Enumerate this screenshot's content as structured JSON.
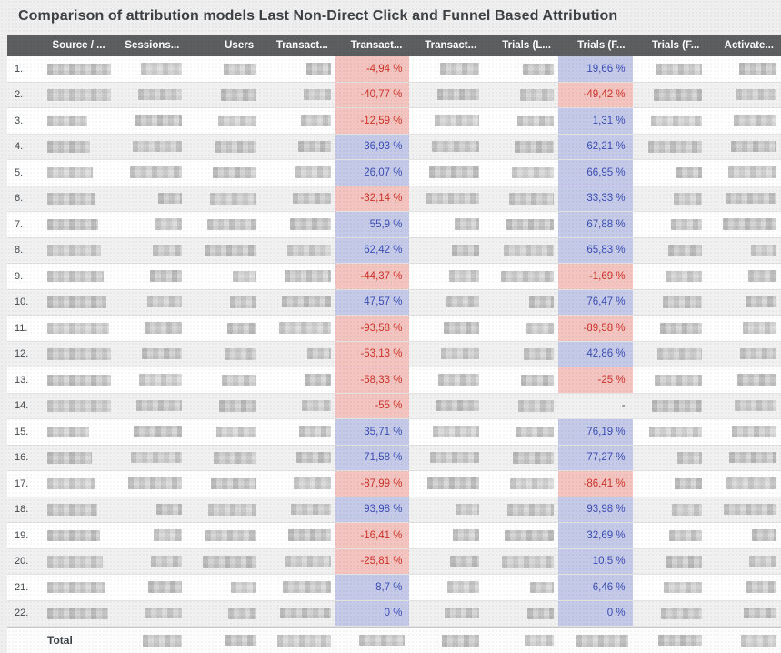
{
  "title": "Comparison of attribution models Last Non-Direct Click and Funnel Based Attribution",
  "colors": {
    "page_background": "#efefef",
    "header_bg": "#5d5e60",
    "header_text": "#ffffff",
    "row_odd_bg": "#ffffff",
    "row_even_bg": "#f1f1f1",
    "positive_bg": "#c5cae9",
    "positive_text": "#3b4db3",
    "negative_bg": "#f4c4c0",
    "negative_text": "#cc332a",
    "neutral_text": "#4a4d50"
  },
  "table": {
    "header": {
      "row_number_label": "",
      "columns": [
        {
          "id": "source",
          "label": "Source / ...",
          "type": "redacted"
        },
        {
          "id": "sessions",
          "label": "Sessions...",
          "type": "redacted"
        },
        {
          "id": "users",
          "label": "Users",
          "type": "redacted"
        },
        {
          "id": "transactions_lndc",
          "label": "Transact...",
          "type": "redacted"
        },
        {
          "id": "transactions_delta",
          "label": "Transact...",
          "type": "percent"
        },
        {
          "id": "transactions_fba",
          "label": "Transact...",
          "type": "redacted"
        },
        {
          "id": "trials_lndc",
          "label": "Trials (L...",
          "type": "redacted"
        },
        {
          "id": "trials_delta",
          "label": "Trials (F...",
          "type": "percent"
        },
        {
          "id": "trials_fba",
          "label": "Trials (F...",
          "type": "redacted"
        },
        {
          "id": "activations",
          "label": "Activate...",
          "type": "redacted"
        }
      ]
    },
    "rows": [
      {
        "num": "1.",
        "transactions_delta": "-4,94 %",
        "trials_delta": "19,66 %"
      },
      {
        "num": "2.",
        "transactions_delta": "-40,77 %",
        "trials_delta": "-49,42 %"
      },
      {
        "num": "3.",
        "transactions_delta": "-12,59 %",
        "trials_delta": "1,31 %"
      },
      {
        "num": "4.",
        "transactions_delta": "36,93 %",
        "trials_delta": "62,21 %"
      },
      {
        "num": "5.",
        "transactions_delta": "26,07 %",
        "trials_delta": "66,95 %"
      },
      {
        "num": "6.",
        "transactions_delta": "-32,14 %",
        "trials_delta": "33,33 %"
      },
      {
        "num": "7.",
        "transactions_delta": "55,9 %",
        "trials_delta": "67,88 %"
      },
      {
        "num": "8.",
        "transactions_delta": "62,42 %",
        "trials_delta": "65,83 %"
      },
      {
        "num": "9.",
        "transactions_delta": "-44,37 %",
        "trials_delta": "-1,69 %"
      },
      {
        "num": "10.",
        "transactions_delta": "47,57 %",
        "trials_delta": "76,47 %"
      },
      {
        "num": "11.",
        "transactions_delta": "-93,58 %",
        "trials_delta": "-89,58 %"
      },
      {
        "num": "12.",
        "transactions_delta": "-53,13 %",
        "trials_delta": "42,86 %"
      },
      {
        "num": "13.",
        "transactions_delta": "-58,33 %",
        "trials_delta": "-25 %"
      },
      {
        "num": "14.",
        "transactions_delta": "-55 %",
        "trials_delta": "-"
      },
      {
        "num": "15.",
        "transactions_delta": "35,71 %",
        "trials_delta": "76,19 %"
      },
      {
        "num": "16.",
        "transactions_delta": "71,58 %",
        "trials_delta": "77,27 %"
      },
      {
        "num": "17.",
        "transactions_delta": "-87,99 %",
        "trials_delta": "-86,41 %"
      },
      {
        "num": "18.",
        "transactions_delta": "93,98 %",
        "trials_delta": "93,98 %"
      },
      {
        "num": "19.",
        "transactions_delta": "-16,41 %",
        "trials_delta": "32,69 %"
      },
      {
        "num": "20.",
        "transactions_delta": "-25,81 %",
        "trials_delta": "10,5 %"
      },
      {
        "num": "21.",
        "transactions_delta": "8,7 %",
        "trials_delta": "6,46 %"
      },
      {
        "num": "22.",
        "transactions_delta": "0 %",
        "trials_delta": "0 %"
      }
    ],
    "total": {
      "label": "Total"
    }
  },
  "chart_data": {
    "type": "table",
    "title": "Comparison of attribution models Last Non-Direct Click and Funnel Based Attribution",
    "columns": [
      "Source / ...",
      "Sessions...",
      "Users",
      "Transact...",
      "Transact...",
      "Transact...",
      "Trials (L...",
      "Trials (F...",
      "Trials (F...",
      "Activate..."
    ],
    "categories": [
      "1.",
      "2.",
      "3.",
      "4.",
      "5.",
      "6.",
      "7.",
      "8.",
      "9.",
      "10.",
      "11.",
      "12.",
      "13.",
      "14.",
      "15.",
      "16.",
      "17.",
      "18.",
      "19.",
      "20.",
      "21.",
      "22."
    ],
    "series": [
      {
        "name": "Transactions change %",
        "values": [
          -4.94,
          -40.77,
          -12.59,
          36.93,
          26.07,
          -32.14,
          55.9,
          62.42,
          -44.37,
          47.57,
          -93.58,
          -53.13,
          -58.33,
          -55,
          35.71,
          71.58,
          -87.99,
          93.98,
          -16.41,
          -25.81,
          8.7,
          0
        ]
      },
      {
        "name": "Trials change %",
        "values": [
          19.66,
          -49.42,
          1.31,
          62.21,
          66.95,
          33.33,
          67.88,
          65.83,
          -1.69,
          76.47,
          -89.58,
          42.86,
          -25,
          null,
          76.19,
          77.27,
          -86.41,
          93.98,
          32.69,
          10.5,
          6.46,
          0
        ]
      }
    ]
  }
}
